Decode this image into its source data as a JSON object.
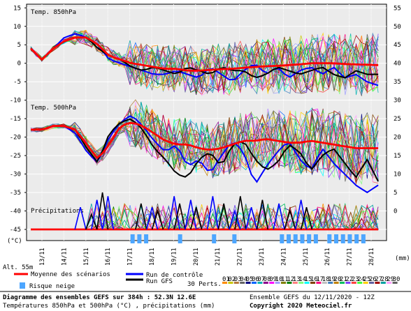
{
  "chart_data": {
    "type": "line",
    "title": "Diagramme des ensembles GEFS sur 384h : 52.3N 12.6E",
    "subtitle": "Températures 850hPa et 500hPa (°C) , précipitations (mm)",
    "unit_left": "(°C)",
    "unit_right": "(mm)",
    "altitude": "Alt. 55m",
    "panels": [
      {
        "label": "Temp. 850hPa",
        "ticks": [
          15,
          10,
          5,
          0,
          -5,
          -10
        ]
      },
      {
        "label": "Temp. 500hPa",
        "ticks": [
          -15,
          -20,
          -25,
          -30,
          -35,
          -40
        ]
      },
      {
        "label": "Précipitations",
        "ticks": [
          -45
        ]
      }
    ],
    "right_ticks": [
      55,
      50,
      45,
      40,
      35,
      30,
      25,
      20,
      15,
      10,
      5,
      0
    ],
    "ylim": [
      -45,
      16
    ],
    "x_dates": [
      "13/11",
      "14/11",
      "15/11",
      "16/11",
      "17/11",
      "18/11",
      "19/11",
      "20/11",
      "21/11",
      "22/11",
      "23/11",
      "24/11",
      "25/11",
      "26/11",
      "27/11",
      "28/11"
    ],
    "series": [
      {
        "name": "Moyenne des scénarios",
        "color": "#ff0000",
        "t850": [
          4,
          1,
          4,
          6,
          7,
          7,
          5,
          2,
          1,
          0,
          -0.5,
          -1,
          -1.5,
          -1.5,
          -2,
          -2,
          -1.8,
          -1.6,
          -1.5,
          -1.2,
          -1,
          -0.8,
          -0.7,
          -0.5,
          -0.3,
          0,
          0,
          0,
          -0.2,
          -0.3,
          -0.4,
          -0.5
        ],
        "t500": [
          -18,
          -18,
          -17,
          -17,
          -18,
          -22,
          -26,
          -22,
          -17,
          -16,
          -17,
          -19,
          -21,
          -22,
          -22,
          -23,
          -23.5,
          -23,
          -22,
          -21,
          -21,
          -20.5,
          -21,
          -21.5,
          -21.5,
          -21,
          -21.5,
          -22,
          -22.5,
          -23,
          -23,
          -23
        ]
      },
      {
        "name": "Run de contrôle",
        "color": "#0000ff",
        "t850": [
          4,
          1,
          4,
          7,
          8,
          7,
          5,
          1,
          0,
          -1,
          -2,
          -3,
          -3,
          -2,
          -3,
          -4,
          -1,
          -3,
          -5,
          -2,
          0,
          -3,
          -1,
          -4,
          -2,
          -1,
          -3,
          -1,
          -4,
          -3,
          -5,
          -6
        ],
        "t500": [
          -18,
          -18,
          -17,
          -17,
          -19,
          -24,
          -27,
          -20,
          -16,
          -14,
          -17,
          -21,
          -24,
          -22,
          -28,
          -26,
          -30,
          -25,
          -21,
          -24,
          -33,
          -28,
          -24,
          -21,
          -26,
          -29,
          -23,
          -27,
          -30,
          -33,
          -35,
          -33
        ]
      },
      {
        "name": "Run GFS",
        "color": "#000000",
        "t850": [
          4,
          1,
          4,
          6,
          7,
          7,
          4,
          2,
          1,
          -1,
          -2,
          -1,
          -2,
          -3,
          -1,
          -2,
          -3,
          -1,
          -2,
          -2,
          -4,
          -3,
          -1,
          -2,
          -3,
          -2,
          -1,
          -3,
          -4,
          -2,
          -3,
          -3
        ],
        "t500": [
          -18,
          -18,
          -17,
          -17,
          -18,
          -23,
          -27,
          -19,
          -16,
          -15,
          -18,
          -23,
          -26,
          -30,
          -31,
          -26,
          -24,
          -28,
          -22,
          -21,
          -26,
          -29,
          -27,
          -22,
          -24,
          -29,
          -25,
          -23,
          -27,
          -31,
          -26,
          -32
        ]
      }
    ],
    "perturbations_label": "30 Perts.",
    "perturbation_ids": [
      "01",
      "02",
      "03",
      "04",
      "05",
      "06",
      "07",
      "08",
      "09",
      "10",
      "11",
      "12",
      "13",
      "14",
      "15",
      "16",
      "17",
      "18",
      "19",
      "20",
      "21",
      "22",
      "23",
      "24",
      "25",
      "26",
      "27",
      "28",
      "29",
      "30"
    ],
    "perturbation_colors": [
      "#ff8c00",
      "#c8c800",
      "#b4783c",
      "#646464",
      "#000080",
      "#0064ff",
      "#00b4b4",
      "#8c008c",
      "#ff00ff",
      "#a0a0ff",
      "#808000",
      "#008000",
      "#ff8080",
      "#80ff80",
      "#00ffff",
      "#804000",
      "#ff0080",
      "#c0c0c0",
      "#4080c0",
      "#c08000",
      "#00c060",
      "#8040ff",
      "#ff4040",
      "#40ff40",
      "#ffd000",
      "#6060a0",
      "#a00000",
      "#00a0a0",
      "#ffa0ff",
      "#606060"
    ],
    "risque_neige": {
      "label": "Risque neige",
      "color": "#4da6ff",
      "steps": [
        15,
        16,
        17,
        22,
        27,
        30,
        37,
        38,
        39,
        40,
        41,
        42,
        44,
        45,
        46,
        47,
        48,
        49
      ]
    },
    "precip": {
      "baseline": -45,
      "spikes": [
        [
          9,
          -39
        ],
        [
          11,
          -41
        ],
        [
          12,
          -37
        ],
        [
          13,
          -35
        ],
        [
          14,
          -36
        ],
        [
          20,
          -38
        ],
        [
          22,
          -39
        ],
        [
          23,
          -40
        ],
        [
          26,
          -36
        ],
        [
          27,
          -38
        ],
        [
          29,
          -37
        ],
        [
          30,
          -39
        ],
        [
          33,
          -36
        ],
        [
          35,
          -38
        ],
        [
          37,
          -40
        ],
        [
          38,
          -36
        ],
        [
          40,
          -39
        ],
        [
          42,
          -37
        ],
        [
          45,
          -38
        ],
        [
          47,
          -40
        ],
        [
          49,
          -37
        ],
        [
          50,
          -39
        ]
      ]
    }
  },
  "footer": {
    "line1": "Diagramme des ensembles GEFS sur 384h : 52.3N 12.6E",
    "line2": "Températures 850hPa et 500hPa (°C) , précipitations (mm)",
    "run_info": "Ensemble GEFS du 12/11/2020 - 12Z",
    "copyright": "Copyright 2020 Meteociel.fr",
    "legend_moyenne": "Moyenne des scénarios",
    "legend_controle": "Run de contrôle",
    "legend_gfs": "Run GFS",
    "legend_neige": "Risque neige"
  }
}
